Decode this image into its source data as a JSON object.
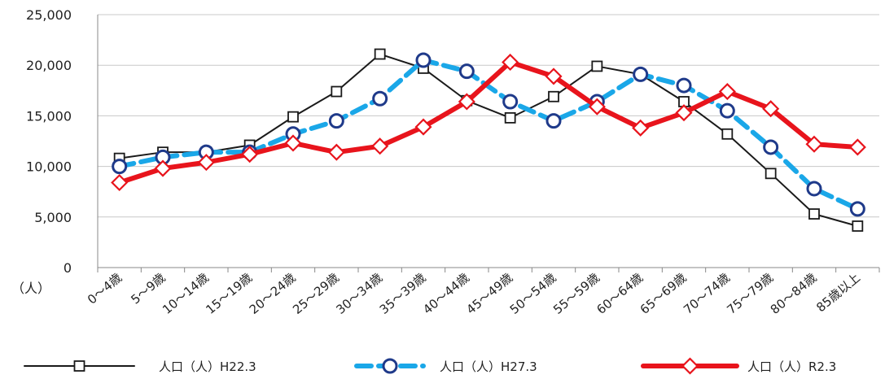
{
  "chart_data": {
    "type": "line",
    "title": "",
    "xlabel": "",
    "ylabel": "",
    "y_unit_label": "（人）",
    "ylim": [
      0,
      25000
    ],
    "yticks": [
      "0",
      "5,000",
      "10,000",
      "15,000",
      "20,000",
      "25,000"
    ],
    "grid": "horizontal",
    "legend_position": "bottom",
    "categories": [
      "0～4歳",
      "5～9歳",
      "10～14歳",
      "15～19歳",
      "20～24歳",
      "25～29歳",
      "30～34歳",
      "35～39歳",
      "40～44歳",
      "45～49歳",
      "50～54歳",
      "55～59歳",
      "60～64歳",
      "65～69歳",
      "70～74歳",
      "75～79歳",
      "80～84歳",
      "85歳以上"
    ],
    "series": [
      {
        "name": "人口（人）H22.3",
        "color": "#1a1a1a",
        "line_style": "solid-thin",
        "marker": "square",
        "values": [
          10800,
          11400,
          11400,
          12100,
          14900,
          17400,
          21100,
          19700,
          16500,
          14800,
          16900,
          19900,
          19100,
          16400,
          13200,
          9300,
          5300,
          4100
        ]
      },
      {
        "name": "人口（人）H27.3",
        "color": "#1aa7e8",
        "line_style": "dashed-thick",
        "marker": "circle",
        "values": [
          10000,
          10900,
          11400,
          11400,
          13200,
          14500,
          16700,
          20500,
          19400,
          16400,
          14500,
          16400,
          19100,
          18000,
          15500,
          11900,
          7800,
          5800
        ]
      },
      {
        "name": "人口（人）R2.3",
        "color": "#e8141c",
        "line_style": "solid-thick",
        "marker": "diamond",
        "values": [
          8400,
          9800,
          10400,
          11200,
          12300,
          11400,
          12000,
          13900,
          16400,
          20300,
          18900,
          15900,
          13800,
          15300,
          17400,
          15700,
          12200,
          11900
        ]
      }
    ]
  }
}
